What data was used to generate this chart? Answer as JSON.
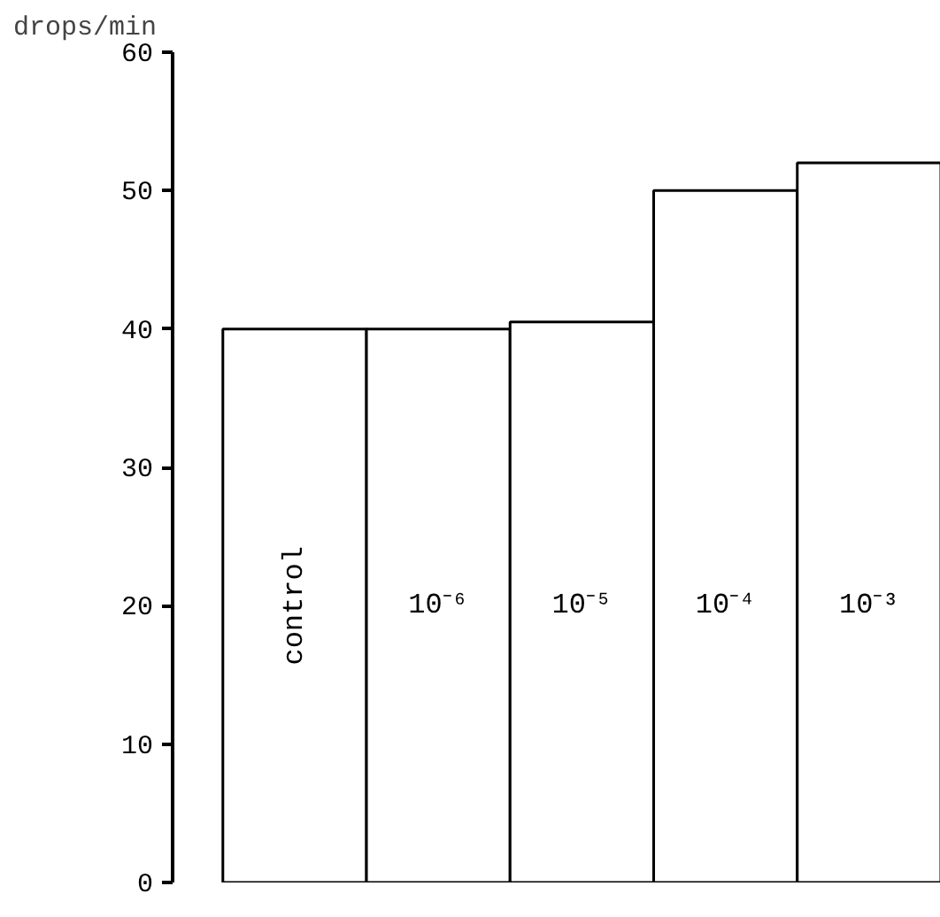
{
  "chart_data": {
    "type": "bar",
    "ylabel": "drops/min",
    "categories": [
      "control",
      "10⁻⁶",
      "10⁻⁵",
      "10⁻⁴",
      "10⁻³"
    ],
    "values": [
      40,
      40,
      40.5,
      50,
      52
    ],
    "colors": [
      "#ffffff",
      "#ffffff",
      "#ffffff",
      "#ffffff",
      "#ffffff"
    ],
    "ylim": [
      0,
      60
    ],
    "yticks": [
      0,
      10,
      20,
      30,
      40,
      50,
      60
    ],
    "grid": false,
    "tick_labels": "y"
  }
}
